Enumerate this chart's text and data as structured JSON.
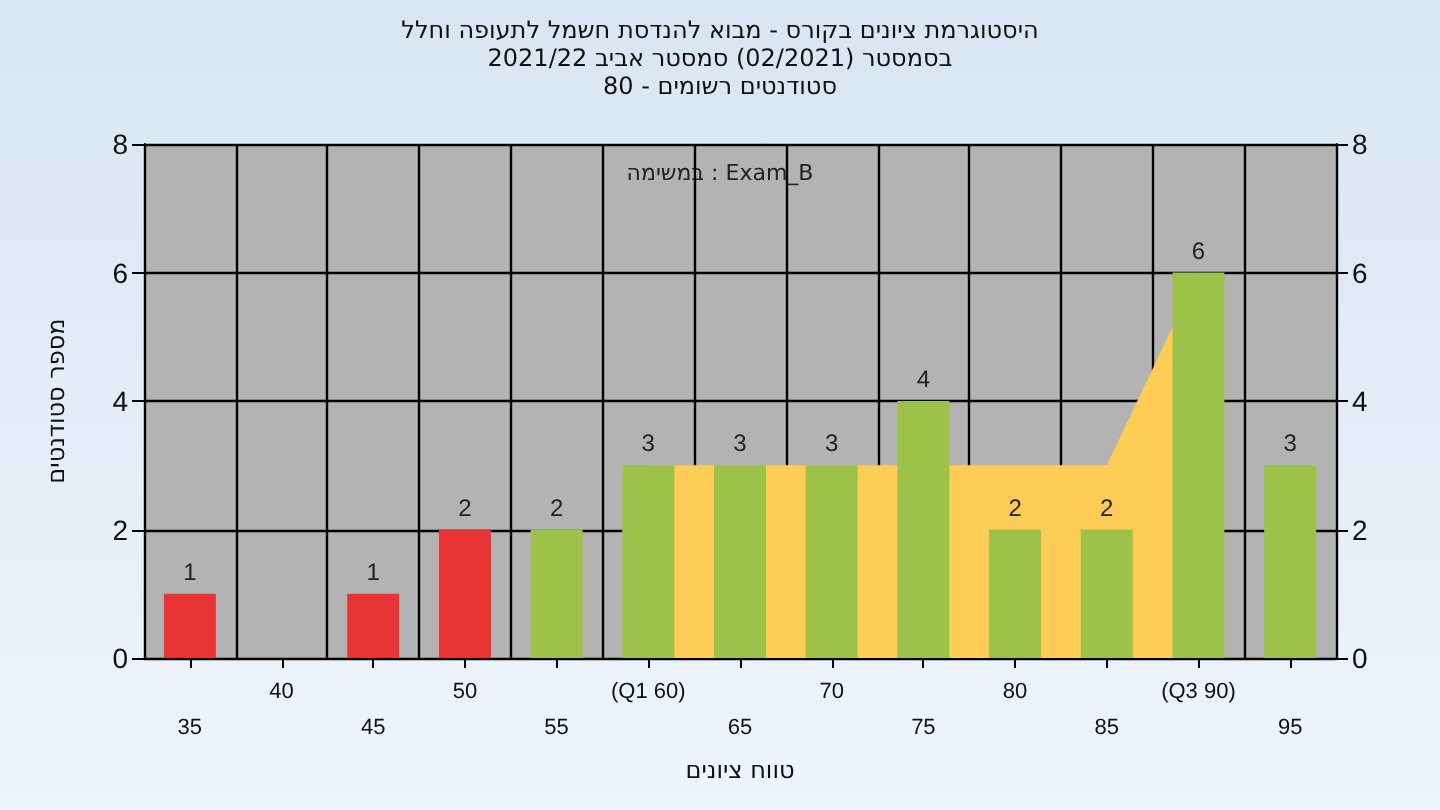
{
  "chart_data": {
    "type": "bar",
    "title": "היסטוגרמת ציונים בקורס - מבוא להנדסת חשמל לתעופה וחלל",
    "subtitle": "בסמסטר (02/2021) סמסטר אביב 2021/22\nסטודנטים רשומים - 80",
    "xlabel": "טווח ציונים",
    "ylabel": "מספר סטודנטים",
    "annotations": [
      "במשימה : Exam_B"
    ],
    "categories": [
      "35",
      "40",
      "45",
      "50",
      "55",
      "(Q1 60)",
      "65",
      "70",
      "75",
      "80",
      "85",
      "(Q3 90)",
      "95"
    ],
    "series": [
      {
        "type": "area",
        "color": "#ffcc55",
        "values": [
          null,
          null,
          null,
          null,
          null,
          3,
          3,
          3,
          null,
          3,
          3,
          6,
          null
        ]
      },
      {
        "colors": [
          "#e83434",
          "#e83434",
          "#e83434",
          "#e83434",
          "#9cc24a",
          "#9cc24a",
          "#9cc24a",
          "#9cc24a",
          "#9cc24a",
          "#9cc24a",
          "#9cc24a",
          "#9cc24a",
          "#9cc24a"
        ],
        "values": [
          1,
          0,
          1,
          2,
          2,
          3,
          3,
          3,
          4,
          2,
          2,
          6,
          3
        ],
        "value_labels": [
          "1",
          null,
          "1",
          "2",
          "2",
          "3",
          "3",
          "3",
          "4",
          "2",
          "2",
          "6",
          "3"
        ]
      }
    ],
    "ylim": [
      0,
      8
    ],
    "yticks": [
      0,
      2,
      4,
      6,
      8
    ],
    "y2lim": [
      0,
      8
    ],
    "y2ticks": [
      0,
      2,
      4,
      6,
      8
    ],
    "grid": true
  }
}
